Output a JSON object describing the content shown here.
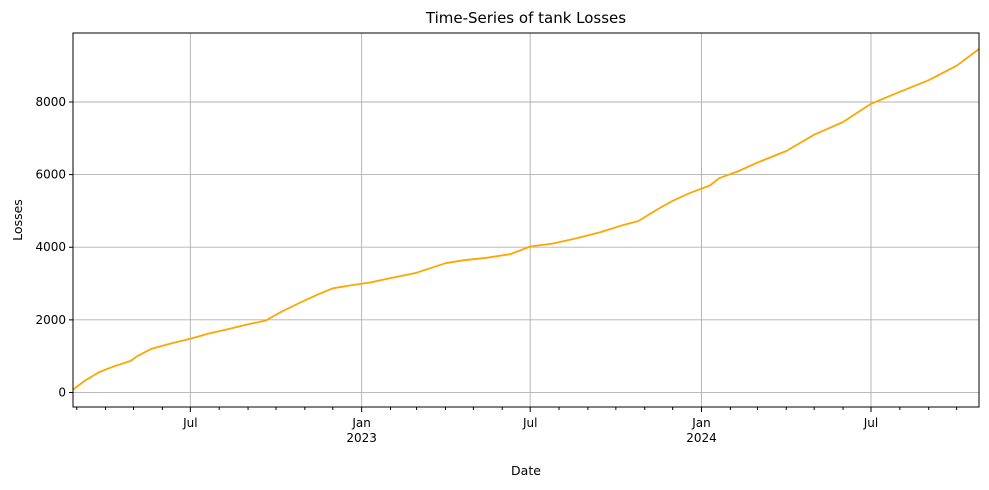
{
  "chart_data": {
    "type": "line",
    "title": "Time-Series of tank Losses",
    "xlabel": "Date",
    "ylabel": "Losses",
    "xlim": [
      "2022-02-25",
      "2024-10-25"
    ],
    "ylim": [
      -400,
      9900
    ],
    "grid": true,
    "line_color": "#ffa500",
    "grid_color": "#b0b0b0",
    "x_ticks_major": [
      {
        "date": "2022-07-01",
        "label": "Jul",
        "sublabel": ""
      },
      {
        "date": "2023-01-01",
        "label": "Jan",
        "sublabel": "2023"
      },
      {
        "date": "2023-07-01",
        "label": "Jul",
        "sublabel": ""
      },
      {
        "date": "2024-01-01",
        "label": "Jan",
        "sublabel": "2024"
      },
      {
        "date": "2024-07-01",
        "label": "Jul",
        "sublabel": ""
      }
    ],
    "x_ticks_minor": [
      "2022-03-01",
      "2022-04-01",
      "2022-05-01",
      "2022-06-01",
      "2022-08-01",
      "2022-09-01",
      "2022-10-01",
      "2022-11-01",
      "2022-12-01",
      "2023-02-01",
      "2023-03-01",
      "2023-04-01",
      "2023-05-01",
      "2023-06-01",
      "2023-08-01",
      "2023-09-01",
      "2023-10-01",
      "2023-11-01",
      "2023-12-01",
      "2024-02-01",
      "2024-03-01",
      "2024-04-01",
      "2024-05-01",
      "2024-06-01",
      "2024-08-01",
      "2024-09-01",
      "2024-10-01"
    ],
    "y_ticks": [
      {
        "value": 0,
        "label": "0"
      },
      {
        "value": 2000,
        "label": "2000"
      },
      {
        "value": 4000,
        "label": "4000"
      },
      {
        "value": 6000,
        "label": "6000"
      },
      {
        "value": 8000,
        "label": "8000"
      }
    ],
    "series": [
      {
        "name": "",
        "points": [
          [
            "2022-02-25",
            80
          ],
          [
            "2022-03-10",
            330
          ],
          [
            "2022-03-25",
            560
          ],
          [
            "2022-04-10",
            720
          ],
          [
            "2022-04-28",
            870
          ],
          [
            "2022-05-05",
            1000
          ],
          [
            "2022-05-20",
            1200
          ],
          [
            "2022-06-10",
            1350
          ],
          [
            "2022-07-01",
            1480
          ],
          [
            "2022-07-20",
            1620
          ],
          [
            "2022-08-10",
            1740
          ],
          [
            "2022-09-01",
            1880
          ],
          [
            "2022-09-20",
            1980
          ],
          [
            "2022-10-05",
            2200
          ],
          [
            "2022-10-25",
            2450
          ],
          [
            "2022-11-15",
            2700
          ],
          [
            "2022-12-01",
            2870
          ],
          [
            "2022-12-20",
            2950
          ],
          [
            "2023-01-10",
            3030
          ],
          [
            "2023-02-01",
            3150
          ],
          [
            "2023-03-01",
            3300
          ],
          [
            "2023-04-01",
            3560
          ],
          [
            "2023-04-20",
            3640
          ],
          [
            "2023-05-15",
            3710
          ],
          [
            "2023-06-10",
            3810
          ],
          [
            "2023-07-01",
            4020
          ],
          [
            "2023-07-25",
            4100
          ],
          [
            "2023-08-20",
            4250
          ],
          [
            "2023-09-15",
            4420
          ],
          [
            "2023-10-10",
            4620
          ],
          [
            "2023-10-25",
            4720
          ],
          [
            "2023-11-15",
            5050
          ],
          [
            "2023-12-01",
            5280
          ],
          [
            "2023-12-20",
            5500
          ],
          [
            "2024-01-10",
            5700
          ],
          [
            "2024-01-20",
            5900
          ],
          [
            "2024-02-10",
            6100
          ],
          [
            "2024-03-01",
            6330
          ],
          [
            "2024-04-01",
            6650
          ],
          [
            "2024-05-01",
            7100
          ],
          [
            "2024-06-01",
            7450
          ],
          [
            "2024-07-01",
            7950
          ],
          [
            "2024-08-01",
            8280
          ],
          [
            "2024-09-01",
            8600
          ],
          [
            "2024-10-01",
            9000
          ],
          [
            "2024-10-25",
            9460
          ]
        ]
      }
    ]
  }
}
